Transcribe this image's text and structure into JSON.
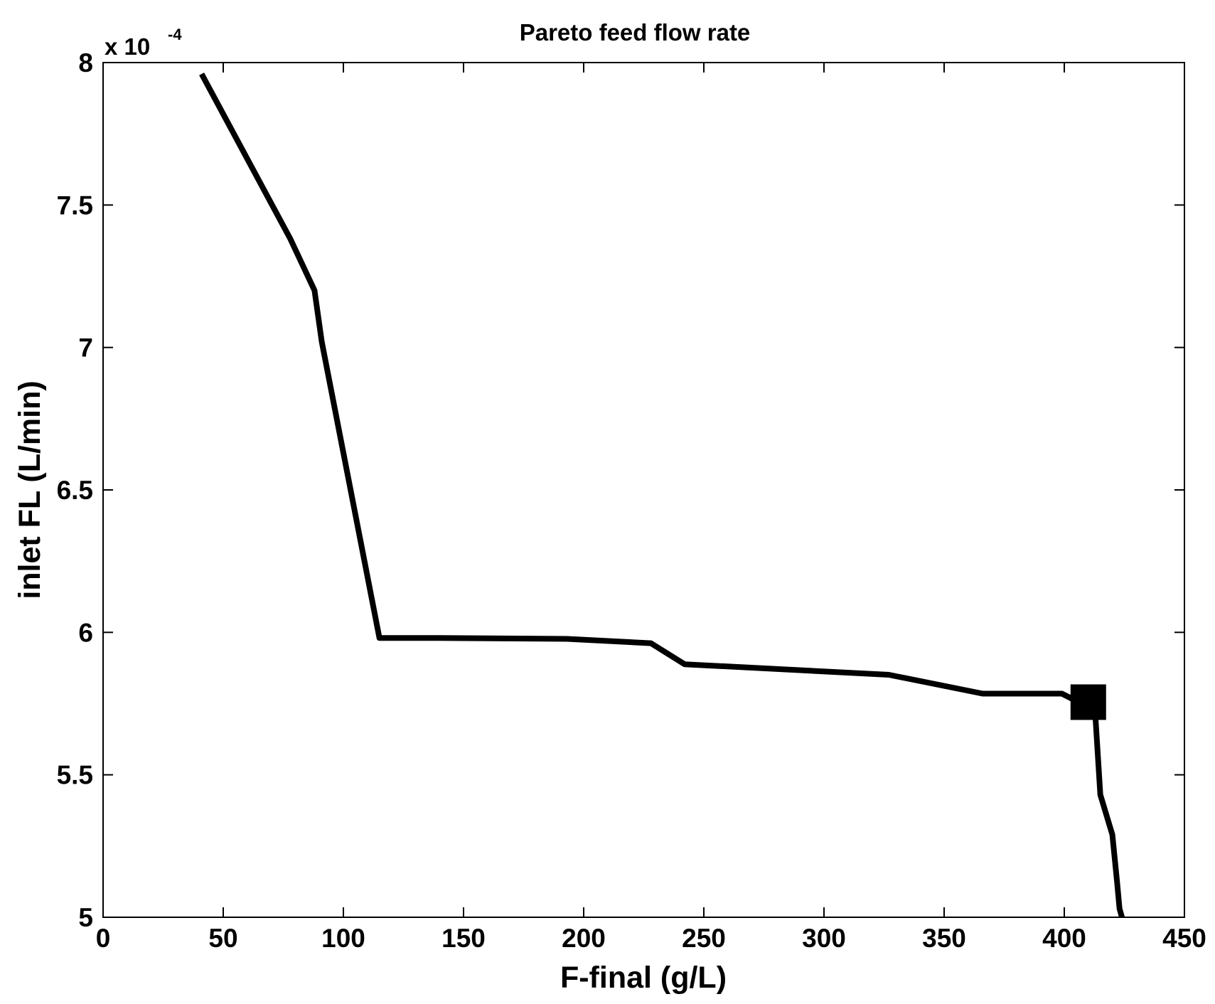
{
  "chart_data": {
    "type": "line",
    "title": "Pareto feed flow rate",
    "xlabel": "F-final (g/L)",
    "ylabel": "inlet FL (L/min)",
    "y_multiplier": {
      "base": "x 10",
      "exponent": "-4"
    },
    "xlim": [
      0,
      450
    ],
    "ylim": [
      5,
      8
    ],
    "xticks": [
      0,
      50,
      100,
      150,
      200,
      250,
      300,
      350,
      400,
      450
    ],
    "xtick_labels": [
      "0",
      "50",
      "100",
      "150",
      "200",
      "250",
      "300",
      "350",
      "400",
      "450"
    ],
    "yticks": [
      5,
      5.5,
      6,
      6.5,
      7,
      7.5,
      8
    ],
    "ytick_labels": [
      "5",
      "5.5",
      "6",
      "6.5",
      "7",
      "7.5",
      "8"
    ],
    "grid": false,
    "series": [
      {
        "x": [
          41,
          78,
          88,
          91,
          115,
          140,
          193,
          228,
          242,
          327,
          366,
          399,
          406,
          413,
          415,
          420,
          422,
          423,
          424
        ],
        "y": [
          7.96,
          7.38,
          7.2,
          7.02,
          5.98,
          5.98,
          5.977,
          5.962,
          5.888,
          5.851,
          5.785,
          5.785,
          5.755,
          5.7,
          5.43,
          5.29,
          5.12,
          5.03,
          5.0
        ],
        "color": "#000000"
      }
    ],
    "markers": [
      {
        "x": 410,
        "y": 5.755,
        "shape": "square",
        "color": "#000000"
      }
    ]
  }
}
